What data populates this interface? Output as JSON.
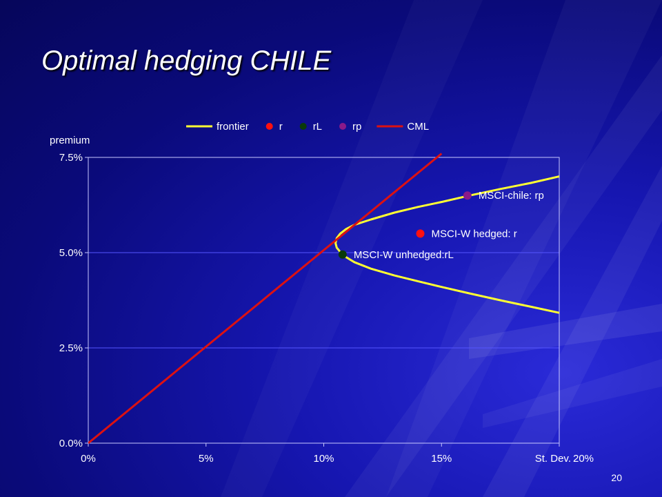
{
  "slide": {
    "title": "Optimal hedging CHILE",
    "page_number": "20"
  },
  "colors": {
    "frontier": "#ffff33",
    "cml": "#dd1111",
    "r": "#ff1010",
    "rL": "#0a3a0a",
    "rp": "#8a1a8a",
    "text": "#ffffff",
    "grid": "#5555ff"
  },
  "chart_data": {
    "type": "scatter",
    "legend": [
      {
        "name": "frontier",
        "marker": "line",
        "color_key": "frontier"
      },
      {
        "name": "r",
        "marker": "dot",
        "color_key": "r"
      },
      {
        "name": "rL",
        "marker": "dot",
        "color_key": "rL"
      },
      {
        "name": "rp",
        "marker": "dot",
        "color_key": "rp"
      },
      {
        "name": "CML",
        "marker": "line",
        "color_key": "cml"
      }
    ],
    "legend_position": "top",
    "ylabel": "premium",
    "xlabel": "St. Dev.",
    "xlim": [
      0,
      20
    ],
    "ylim": [
      0,
      7.5
    ],
    "x_ticks": [
      {
        "value": 0,
        "label": "0%"
      },
      {
        "value": 5,
        "label": "5%"
      },
      {
        "value": 10,
        "label": "10%"
      },
      {
        "value": 15,
        "label": "15%"
      },
      {
        "value": 20,
        "label": "20%"
      }
    ],
    "y_ticks": [
      {
        "value": 0,
        "label": "0.0%"
      },
      {
        "value": 2.5,
        "label": "2.5%"
      },
      {
        "value": 5,
        "label": "5.0%"
      },
      {
        "value": 7.5,
        "label": "7.5%"
      }
    ],
    "gridlines": "horizontal",
    "series": [
      {
        "name": "frontier",
        "kind": "line",
        "color_key": "frontier",
        "x": [
          20.0,
          18.8,
          17.5,
          16.2,
          15.0,
          14.0,
          13.0,
          12.0,
          11.3,
          10.9,
          10.7,
          10.55,
          10.5,
          10.55,
          10.7,
          10.95,
          11.3,
          12.0,
          13.0,
          14.0,
          15.0,
          16.2,
          17.5,
          18.8,
          20.0
        ],
        "y": [
          3.42,
          3.58,
          3.75,
          3.93,
          4.1,
          4.25,
          4.4,
          4.58,
          4.75,
          4.9,
          5.02,
          5.13,
          5.25,
          5.38,
          5.5,
          5.62,
          5.73,
          5.87,
          6.05,
          6.2,
          6.33,
          6.5,
          6.67,
          6.83,
          7.0
        ]
      },
      {
        "name": "CML",
        "kind": "line",
        "color_key": "cml",
        "x": [
          0,
          15.0
        ],
        "y": [
          0,
          7.6
        ]
      },
      {
        "name": "r",
        "kind": "point",
        "color_key": "r",
        "x": [
          14.1
        ],
        "y": [
          5.5
        ],
        "annotation": "MSCI-W hedged: r"
      },
      {
        "name": "rL",
        "kind": "point",
        "color_key": "rL",
        "x": [
          10.8
        ],
        "y": [
          4.95
        ],
        "annotation": "MSCI-W unhedged:rL"
      },
      {
        "name": "rp",
        "kind": "point",
        "color_key": "rp",
        "x": [
          16.1
        ],
        "y": [
          6.5
        ],
        "annotation": "MSCI-chile: rp"
      }
    ]
  }
}
